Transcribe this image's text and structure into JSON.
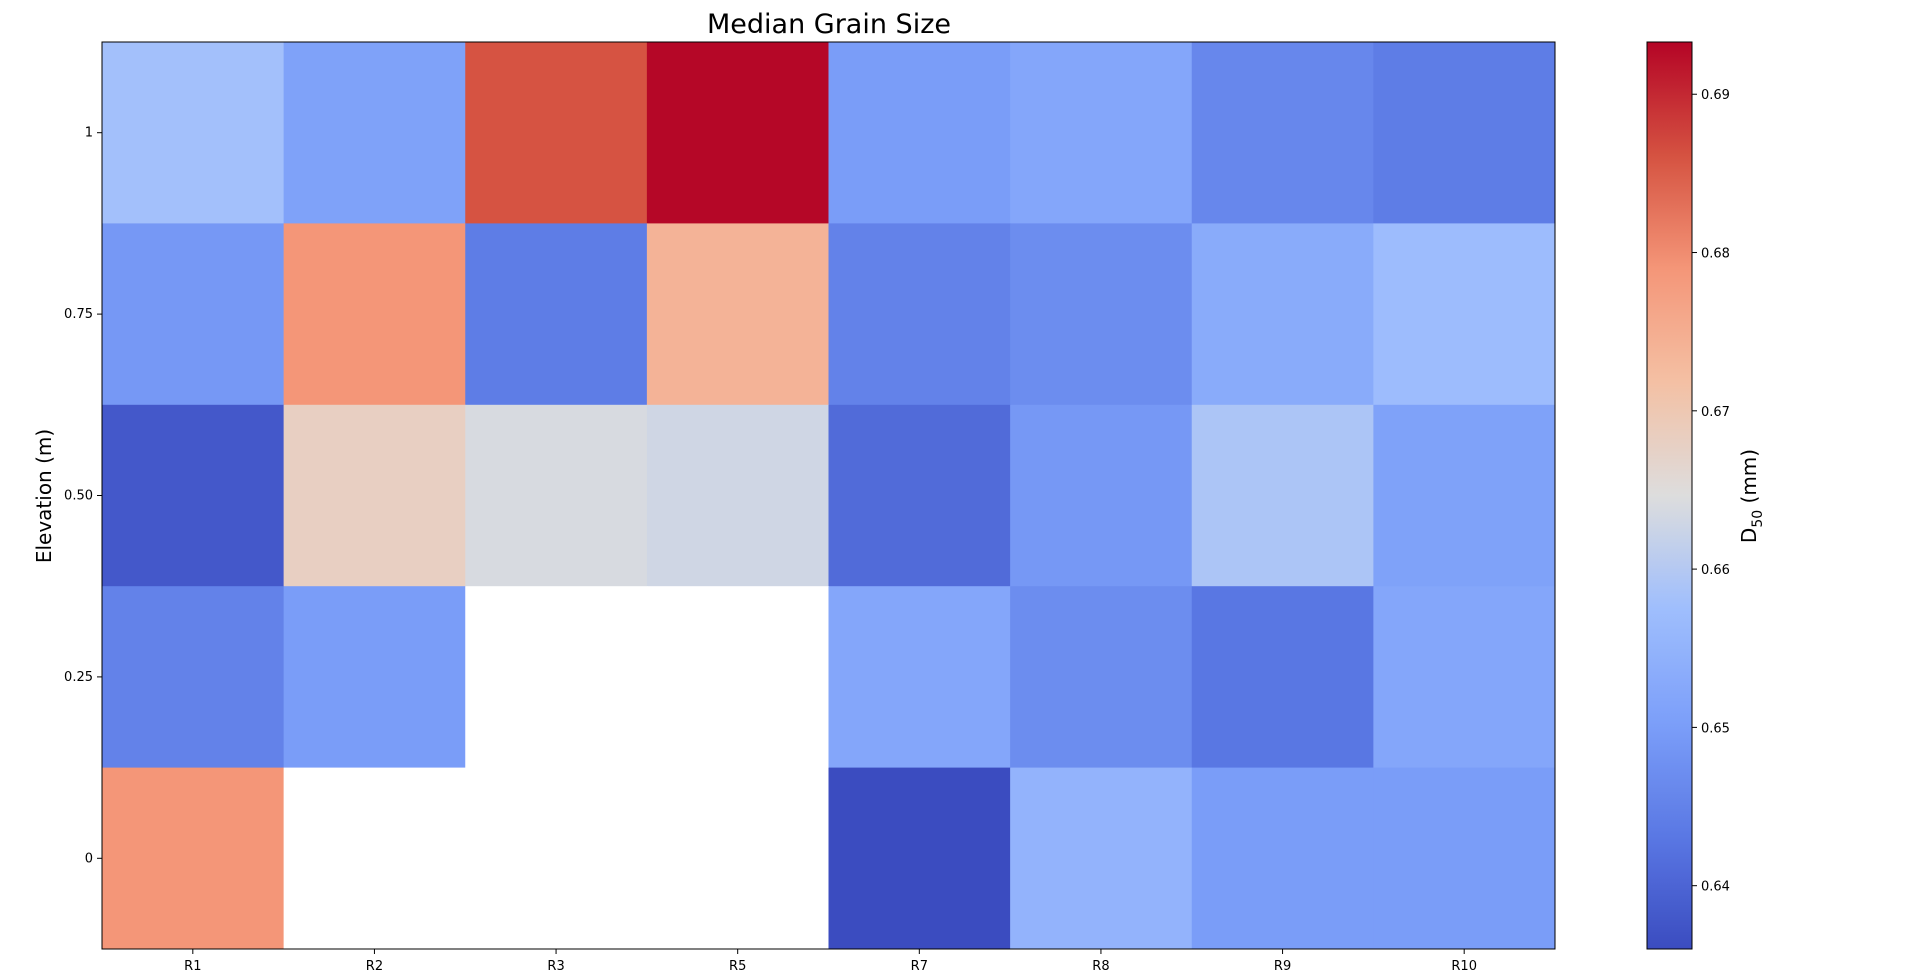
{
  "chart_data": {
    "type": "heatmap",
    "title": "Median Grain Size",
    "xlabel": "",
    "ylabel": "Elevation (m)",
    "x_categories": [
      "R1",
      "R2",
      "R3",
      "R5",
      "R7",
      "R8",
      "R9",
      "R10"
    ],
    "y_categories": [
      "1",
      "0.75",
      "0.50",
      "0.25",
      "0"
    ],
    "y_order": "top-to-bottom",
    "values": [
      [
        0.658,
        0.651,
        0.686,
        0.693,
        0.65,
        0.652,
        0.646,
        0.644
      ],
      [
        0.649,
        0.679,
        0.644,
        0.674,
        0.645,
        0.647,
        0.653,
        0.657
      ],
      [
        0.638,
        0.668,
        0.664,
        0.663,
        0.641,
        0.649,
        0.659,
        0.651
      ],
      [
        0.645,
        0.65,
        null,
        null,
        0.652,
        0.647,
        0.643,
        0.652
      ],
      [
        0.679,
        null,
        null,
        null,
        0.636,
        0.655,
        0.65,
        0.65
      ]
    ],
    "colormap": "coolwarm",
    "missing_color": "#ffffff",
    "colorbar": {
      "label_main": "D",
      "label_sub": "50",
      "label_unit": " (mm)",
      "min": 0.636,
      "max": 0.6933,
      "ticks": [
        0.64,
        0.65,
        0.66,
        0.67,
        0.68,
        0.69
      ],
      "tick_labels": [
        "0.64",
        "0.65",
        "0.66",
        "0.67",
        "0.68",
        "0.69"
      ]
    }
  }
}
